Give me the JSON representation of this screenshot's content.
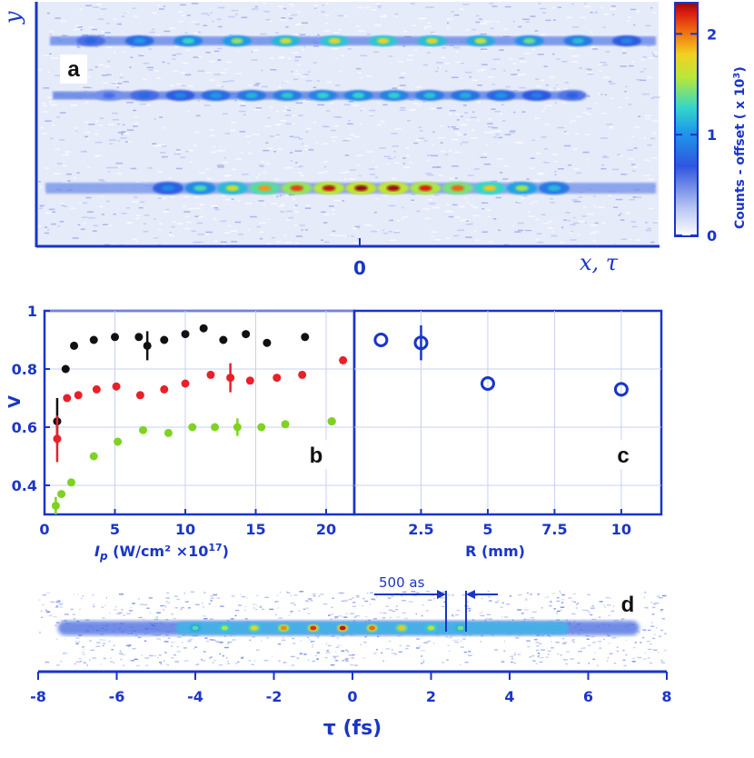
{
  "colors": {
    "axis": "#1a35c8",
    "series_black": "#111111",
    "series_red": "#e8202a",
    "series_green": "#7ed321",
    "noise_bg": "#e6ebfa"
  },
  "panel_a": {
    "label": "a",
    "y_axis_label": "y",
    "x_axis_label": "x, τ",
    "x_tick_label": "0",
    "colorbar": {
      "label": "Counts - offset ( x 10",
      "label_exp": "3",
      "label_close": ")",
      "ticks": [
        "0",
        "1",
        "2"
      ],
      "tick_values": [
        0,
        1,
        2
      ],
      "max": 2.3
    },
    "traces": [
      {
        "name": "top trace",
        "peaks": 12,
        "intensity": 0.75
      },
      {
        "name": "middle trace",
        "peaks": 14,
        "intensity": 0.55
      },
      {
        "name": "bottom trace",
        "peaks": 13,
        "intensity": 1.0
      }
    ]
  },
  "chart_data": [
    {
      "panel": "b",
      "type": "scatter",
      "label": "b",
      "xlabel_main": "I",
      "xlabel_sub": "p",
      "xlabel_units": " (W/cm² ×10",
      "xlabel_exp": "17",
      "xlabel_close": ")",
      "ylabel": "V",
      "xlim": [
        0,
        22
      ],
      "ylim": [
        0.3,
        1.0
      ],
      "xticks": [
        0,
        5,
        10,
        15,
        20
      ],
      "xtick_labels": [
        "0",
        "5",
        "10",
        "15",
        "20"
      ],
      "yticks": [
        0.4,
        0.6,
        0.8,
        1.0
      ],
      "ytick_labels": [
        "0.4",
        "0.6",
        "0.8",
        "1"
      ],
      "series": [
        {
          "name": "black",
          "x": [
            0.9,
            1.5,
            2.1,
            3.5,
            5.0,
            6.7,
            7.3,
            8.5,
            10.0,
            11.3,
            12.7,
            14.3,
            15.8,
            18.5
          ],
          "y": [
            0.62,
            0.8,
            0.88,
            0.9,
            0.91,
            0.91,
            0.88,
            0.9,
            0.92,
            0.94,
            0.9,
            0.92,
            0.89,
            0.91
          ],
          "err": [
            0.08,
            0,
            0,
            0,
            0,
            0,
            0.05,
            0,
            0,
            0,
            0,
            0,
            0,
            0
          ]
        },
        {
          "name": "red",
          "x": [
            0.9,
            1.6,
            2.4,
            3.7,
            5.1,
            6.8,
            8.5,
            10.0,
            11.8,
            13.2,
            14.6,
            16.5,
            18.3,
            20.4,
            21.2
          ],
          "y": [
            0.56,
            0.7,
            0.71,
            0.73,
            0.74,
            0.71,
            0.73,
            0.75,
            0.78,
            0.77,
            0.76,
            0.77,
            0.78,
            0.62,
            0.83
          ],
          "err": [
            0.08,
            0,
            0,
            0,
            0,
            0,
            0,
            0,
            0,
            0.05,
            0,
            0,
            0,
            0,
            0
          ]
        },
        {
          "name": "green",
          "x": [
            0.8,
            1.2,
            1.9,
            3.5,
            5.2,
            7.0,
            8.8,
            10.5,
            12.1,
            13.7,
            15.4,
            17.1,
            20.4
          ],
          "y": [
            0.33,
            0.37,
            0.41,
            0.5,
            0.55,
            0.59,
            0.58,
            0.6,
            0.6,
            0.6,
            0.6,
            0.61,
            0.62
          ],
          "err": [
            0.03,
            0,
            0,
            0,
            0,
            0,
            0,
            0,
            0,
            0.03,
            0,
            0,
            0
          ]
        }
      ]
    },
    {
      "panel": "c",
      "type": "scatter",
      "label": "c",
      "xlabel": "R (mm)",
      "xlim": [
        0,
        11.5
      ],
      "ylim": [
        0.3,
        1.0
      ],
      "xticks": [
        2.5,
        5,
        7.5,
        10
      ],
      "xtick_labels": [
        "2.5",
        "5",
        "7.5",
        "10"
      ],
      "series": [
        {
          "name": "V vs R",
          "x": [
            1.0,
            2.5,
            5.0,
            10.0
          ],
          "y": [
            0.9,
            0.89,
            0.75,
            0.73
          ],
          "err": [
            0,
            0.06,
            0,
            0
          ]
        }
      ]
    },
    {
      "panel": "d",
      "type": "heatmap",
      "label": "d",
      "xlabel": "τ (fs)",
      "xlim": [
        -8,
        8
      ],
      "xticks": [
        -8,
        -6,
        -4,
        -2,
        0,
        2,
        4,
        6,
        8
      ],
      "xtick_labels": [
        "-8",
        "-6",
        "-4",
        "-2",
        "0",
        "2",
        "4",
        "6",
        "8"
      ],
      "annotation": "500 as",
      "trace_extent_fs": [
        -7.5,
        7.3
      ],
      "bright_region_fs": [
        -4.5,
        5.5
      ],
      "peak_period_fs": 0.5
    }
  ]
}
